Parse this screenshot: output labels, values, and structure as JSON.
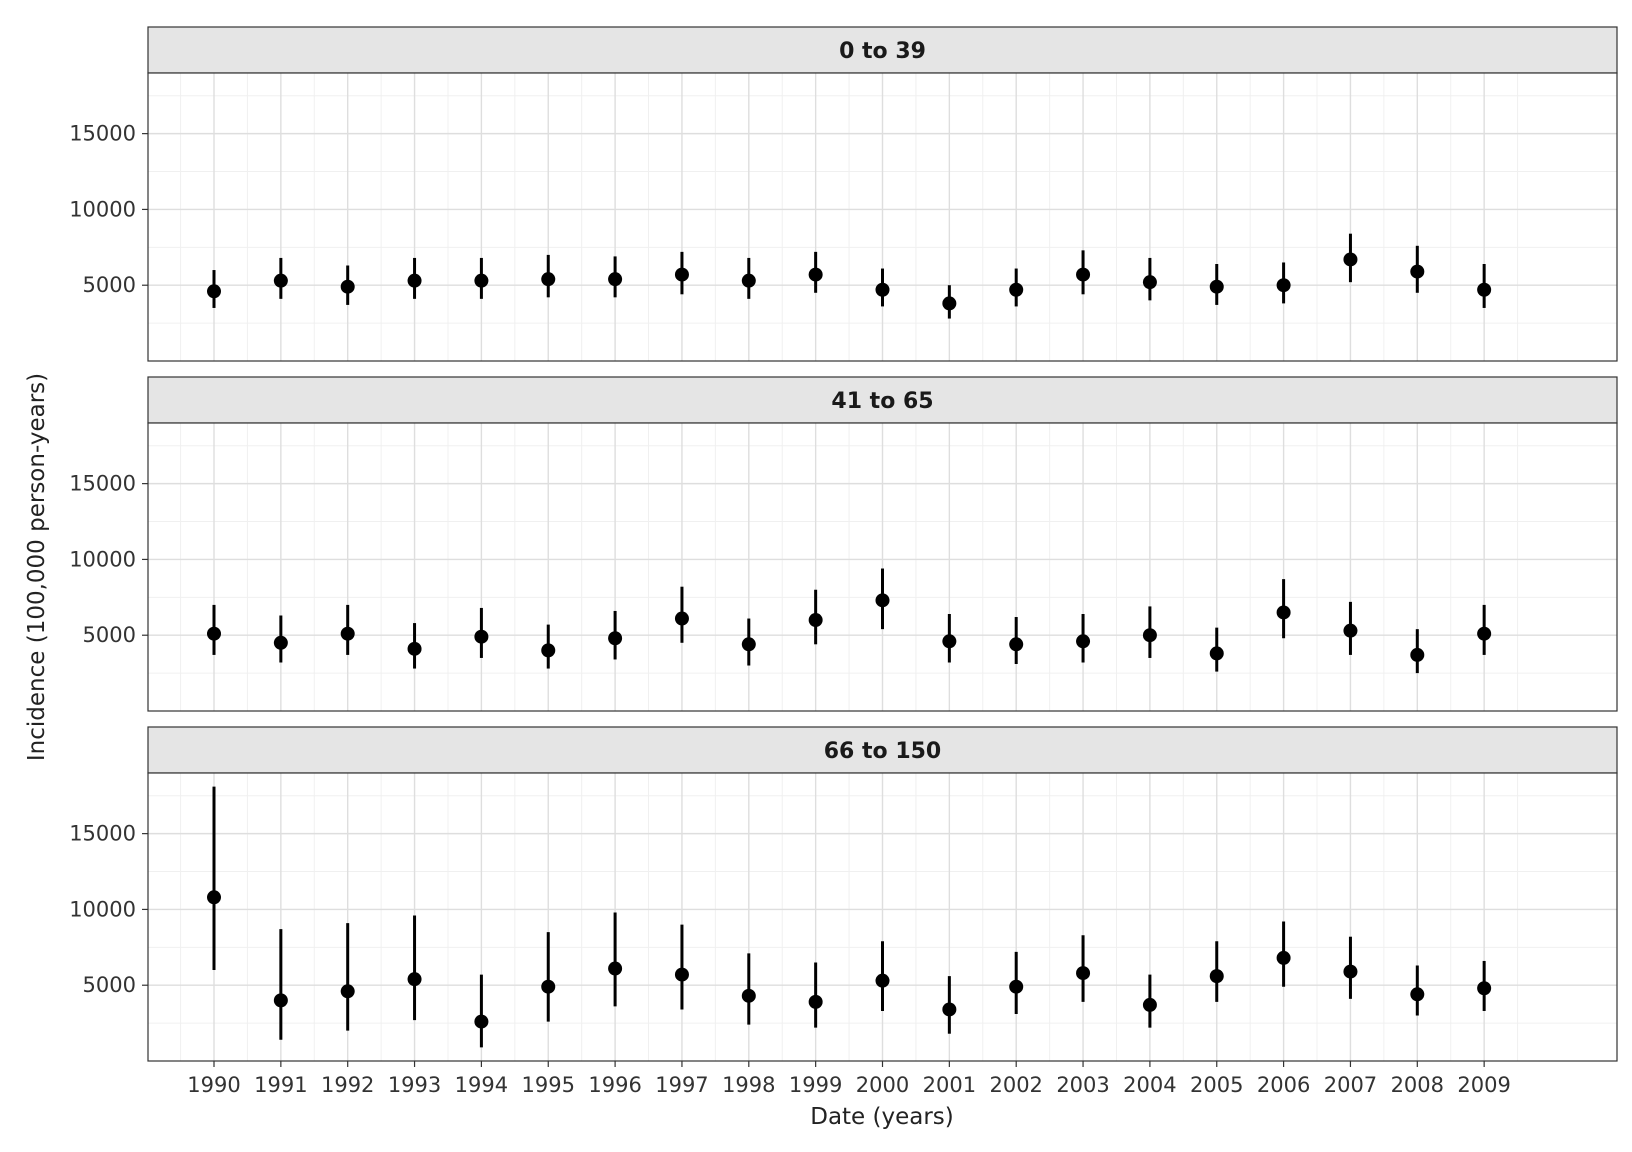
{
  "chart_data": {
    "type": "scatter",
    "subtype": "point-range faceted",
    "xlabel": "Date (years)",
    "ylabel": "Incidence (100,000 person-years)",
    "x": [
      "1990",
      "1991",
      "1992",
      "1993",
      "1994",
      "1995",
      "1996",
      "1997",
      "1998",
      "1999",
      "2000",
      "2001",
      "2002",
      "2003",
      "2004",
      "2005",
      "2006",
      "2007",
      "2008",
      "2009"
    ],
    "ylim": [
      0,
      19000
    ],
    "yticks": [
      5000,
      10000,
      15000
    ],
    "ytick_labels": [
      "5000",
      "10000",
      "15000"
    ],
    "grid": true,
    "panels": [
      {
        "title": "0 to 39",
        "estimate": [
          4600,
          5300,
          4900,
          5300,
          5300,
          5400,
          5400,
          5700,
          5300,
          5700,
          4700,
          3800,
          4700,
          5700,
          5200,
          4900,
          5000,
          6700,
          5900,
          4700
        ],
        "lower": [
          3500,
          4100,
          3700,
          4100,
          4100,
          4200,
          4200,
          4400,
          4100,
          4500,
          3600,
          2800,
          3600,
          4400,
          4000,
          3700,
          3800,
          5200,
          4500,
          3500
        ],
        "upper": [
          6000,
          6800,
          6300,
          6800,
          6800,
          7000,
          6900,
          7200,
          6800,
          7200,
          6100,
          5000,
          6100,
          7300,
          6800,
          6400,
          6500,
          8400,
          7600,
          6400
        ]
      },
      {
        "title": "41 to 65",
        "estimate": [
          5100,
          4500,
          5100,
          4100,
          4900,
          4000,
          4800,
          6100,
          4400,
          6000,
          7300,
          4600,
          4400,
          4600,
          5000,
          3800,
          6500,
          5300,
          3700,
          5100
        ],
        "lower": [
          3700,
          3200,
          3700,
          2800,
          3500,
          2800,
          3400,
          4500,
          3000,
          4400,
          5400,
          3200,
          3100,
          3200,
          3500,
          2600,
          4800,
          3700,
          2500,
          3700
        ],
        "upper": [
          7000,
          6300,
          7000,
          5800,
          6800,
          5700,
          6600,
          8200,
          6100,
          8000,
          9400,
          6400,
          6200,
          6400,
          6900,
          5500,
          8700,
          7200,
          5400,
          7000
        ]
      },
      {
        "title": "66 to 150",
        "estimate": [
          10800,
          4000,
          4600,
          5400,
          2600,
          4900,
          6100,
          5700,
          4300,
          3900,
          5300,
          3400,
          4900,
          5800,
          3700,
          5600,
          6800,
          5900,
          4400,
          4800
        ],
        "lower": [
          6000,
          1400,
          2000,
          2700,
          900,
          2600,
          3600,
          3400,
          2400,
          2200,
          3300,
          1800,
          3100,
          3900,
          2200,
          3900,
          4900,
          4100,
          3000,
          3300
        ],
        "upper": [
          18100,
          8700,
          9100,
          9600,
          5700,
          8500,
          9800,
          9000,
          7100,
          6500,
          7900,
          5600,
          7200,
          8300,
          5700,
          7900,
          9200,
          8200,
          6300,
          6600
        ]
      }
    ]
  }
}
